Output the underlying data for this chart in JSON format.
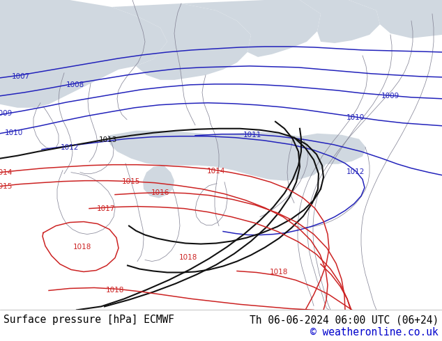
{
  "title_left": "Surface pressure [hPa] ECMWF",
  "title_right": "Th 06-06-2024 06:00 UTC (06+24)",
  "copyright": "© weatheronline.co.uk",
  "bg_land": "#c8e89a",
  "bg_sea": "#d0d8e0",
  "bg_bottom": "#ffffff",
  "coast_color": "#888899",
  "blue": "#2222bb",
  "red": "#cc2222",
  "black": "#111111",
  "title_color": "#000000",
  "copy_color": "#0000cc",
  "lw": 1.1,
  "lw_black": 1.5,
  "fs_label": 7.5,
  "fs_title": 10.5
}
